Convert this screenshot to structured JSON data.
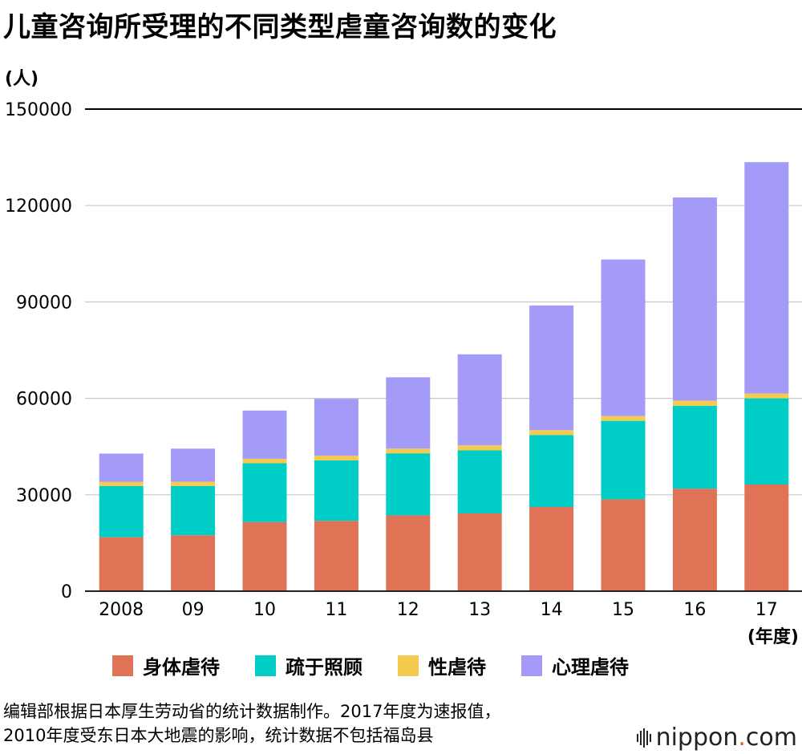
{
  "title": "儿童咨询所受理的不同类型虐童咨询数的变化",
  "unit_label": "(人)",
  "chart_data": {
    "type": "bar",
    "stacked": true,
    "categories": [
      "2008",
      "09",
      "10",
      "11",
      "12",
      "13",
      "14",
      "15",
      "16",
      "17"
    ],
    "x_suffix_label": "(年度)",
    "ylim": [
      0,
      150000
    ],
    "yticks": [
      0,
      30000,
      60000,
      90000,
      120000,
      150000
    ],
    "ytick_labels": [
      "0",
      "30000",
      "60000",
      "90000",
      "120000",
      "150000"
    ],
    "series": [
      {
        "name": "身体虐待",
        "color": "#e07356",
        "values": [
          16800,
          17400,
          21500,
          21900,
          23600,
          24200,
          26200,
          28600,
          31900,
          33200
        ]
      },
      {
        "name": "疏于照顾",
        "color": "#00cec6",
        "values": [
          15900,
          15300,
          18300,
          18800,
          19300,
          19600,
          22400,
          24400,
          25800,
          26800
        ]
      },
      {
        "name": "性虐待",
        "color": "#f5cb4f",
        "values": [
          1300,
          1350,
          1400,
          1450,
          1450,
          1600,
          1500,
          1500,
          1600,
          1500
        ]
      },
      {
        "name": "心理虐待",
        "color": "#a39bf7",
        "values": [
          8800,
          10300,
          15000,
          17700,
          22200,
          28300,
          38800,
          48700,
          63200,
          72000
        ]
      }
    ]
  },
  "note_lines": [
    "编辑部根据日本厚生劳动省的统计数据制作。2017年度为速报值，",
    "2010年度受东日本大地震的影响，统计数据不包括福岛县"
  ],
  "logo": {
    "name": "nippon",
    "dot": ".",
    "tld": "com"
  }
}
